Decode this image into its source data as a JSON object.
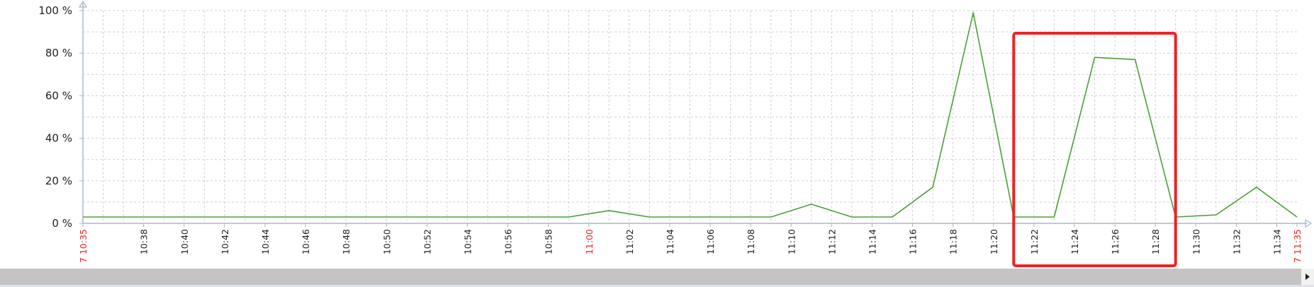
{
  "chart_data": {
    "type": "line",
    "x": [
      "10:35",
      "10:37",
      "10:39",
      "10:41",
      "10:43",
      "10:45",
      "10:47",
      "10:49",
      "10:51",
      "10:53",
      "10:55",
      "10:57",
      "10:59",
      "11:01",
      "11:03",
      "11:05",
      "11:07",
      "11:09",
      "11:11",
      "11:13",
      "11:15",
      "11:17",
      "11:19",
      "11:21",
      "11:23",
      "11:25",
      "11:27",
      "11:29",
      "11:31",
      "11:33",
      "11:35"
    ],
    "series": [
      {
        "values": [
          3,
          3,
          3,
          3,
          3,
          3,
          3,
          3,
          3,
          3,
          3,
          3,
          3,
          6,
          3,
          3,
          3,
          3,
          9,
          3,
          3,
          17,
          99,
          3,
          3,
          78,
          77,
          3,
          4,
          17,
          3
        ],
        "color": "#4a9e3a"
      }
    ],
    "ylim": [
      0,
      100
    ],
    "xlim": [
      "10:35",
      "11:35"
    ],
    "y_ticks": [
      "0 %",
      "20 %",
      "40 %",
      "60 %",
      "80 %",
      "100 %"
    ],
    "x_ticks": [
      "10:38",
      "10:40",
      "10:42",
      "10:44",
      "10:46",
      "10:48",
      "10:50",
      "10:52",
      "10:54",
      "10:56",
      "10:58",
      "11:00",
      "11:02",
      "11:04",
      "11:06",
      "11:08",
      "11:10",
      "11:12",
      "11:14",
      "11:16",
      "11:18",
      "11:20",
      "11:22",
      "11:24",
      "11:26",
      "11:28",
      "11:30",
      "11:32",
      "11:34"
    ],
    "highlighted_ticks": [
      "11:00"
    ],
    "range_start_label": "7 10:35",
    "range_end_label": "7 11:35",
    "grid": true,
    "highlight_box": {
      "from": "11:21",
      "to": "11:29",
      "color": "#ee2222"
    },
    "colors": {
      "axis": "#a9b8c8",
      "grid": "#cfcfcf",
      "tick_text": "#222222",
      "accent_text": "#ee2222"
    }
  },
  "scrollbar": {
    "arrow_icon": "triangle-right-icon"
  }
}
